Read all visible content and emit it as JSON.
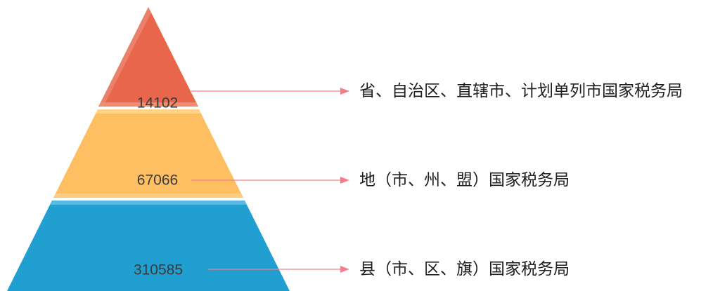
{
  "pyramid": {
    "tiers": [
      {
        "value": "14102",
        "label": "省、自治区、直辖市、计划单列市国家税务局",
        "color": "#e8664b"
      },
      {
        "value": "67066",
        "label": "地（市、州、盟）国家税务局",
        "color": "#fdbf62"
      },
      {
        "value": "310585",
        "label": "县（市、区、旗）国家税务局",
        "color": "#229fd1"
      }
    ],
    "arrow_color": "#f0808e"
  }
}
